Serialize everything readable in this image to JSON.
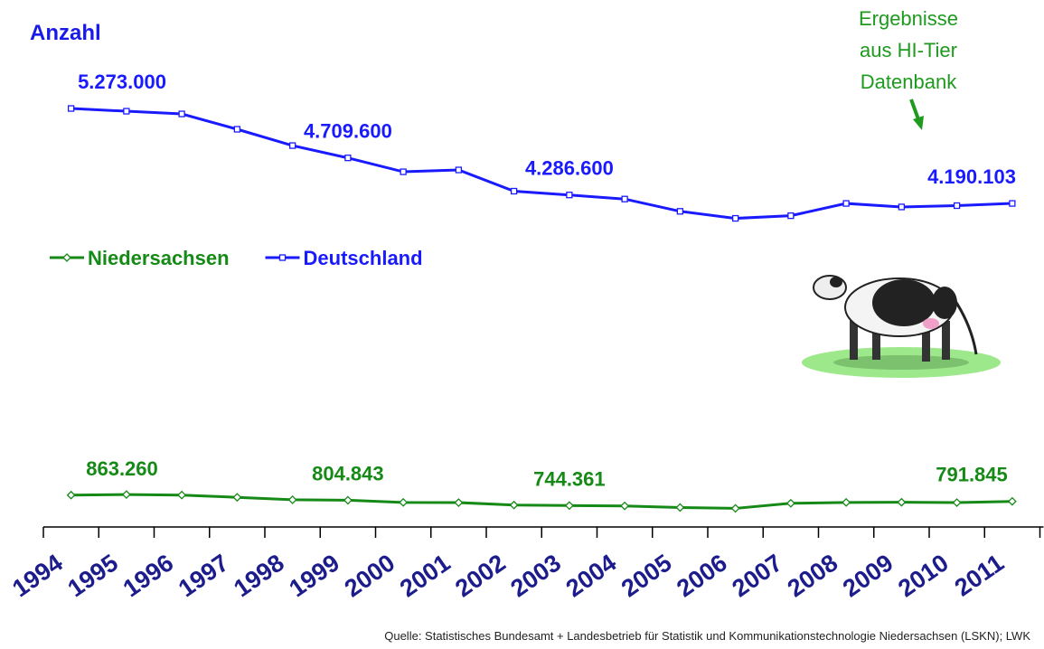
{
  "chart_data": {
    "type": "line",
    "ylabel": "Anzahl",
    "annotation": [
      "Ergebnisse",
      "aus HI-Tier",
      "Datenbank"
    ],
    "source": "Quelle: Statistisches Bundesamt  +  Landesbetrieb für Statistik und Kommunikationstechnologie Niedersachsen (LSKN); LWK",
    "categories": [
      "1994",
      "1995",
      "1996",
      "1997",
      "1998",
      "1999",
      "2000",
      "2001",
      "2002",
      "2003",
      "2004",
      "2005",
      "2006",
      "2007",
      "2008",
      "2009",
      "2010",
      "2011"
    ],
    "ylim": [
      500000,
      5500000
    ],
    "legend": "upper-left",
    "series": [
      {
        "name": "Niedersachsen",
        "color": "#168a16",
        "marker": "diamond",
        "values": [
          863260,
          870000,
          864000,
          838000,
          810000,
          804843,
          780000,
          778000,
          750000,
          744361,
          740000,
          722000,
          712000,
          770000,
          780000,
          782000,
          778000,
          791845
        ],
        "value_labels": [
          "863.260",
          null,
          null,
          null,
          null,
          "804.843",
          null,
          null,
          null,
          "744.361",
          null,
          null,
          null,
          null,
          null,
          null,
          null,
          "791.845"
        ]
      },
      {
        "name": "Deutschland",
        "color": "#1a1aff",
        "marker": "square",
        "values": [
          5273000,
          5242000,
          5211000,
          5036000,
          4850000,
          4709600,
          4551000,
          4572000,
          4330000,
          4286600,
          4240000,
          4100000,
          4020000,
          4050000,
          4190000,
          4150000,
          4165000,
          4190103
        ],
        "value_labels": [
          "5.273.000",
          null,
          null,
          null,
          null,
          "4.709.600",
          null,
          null,
          null,
          "4.286.600",
          null,
          null,
          null,
          null,
          null,
          null,
          null,
          "4.190.103"
        ]
      }
    ]
  }
}
